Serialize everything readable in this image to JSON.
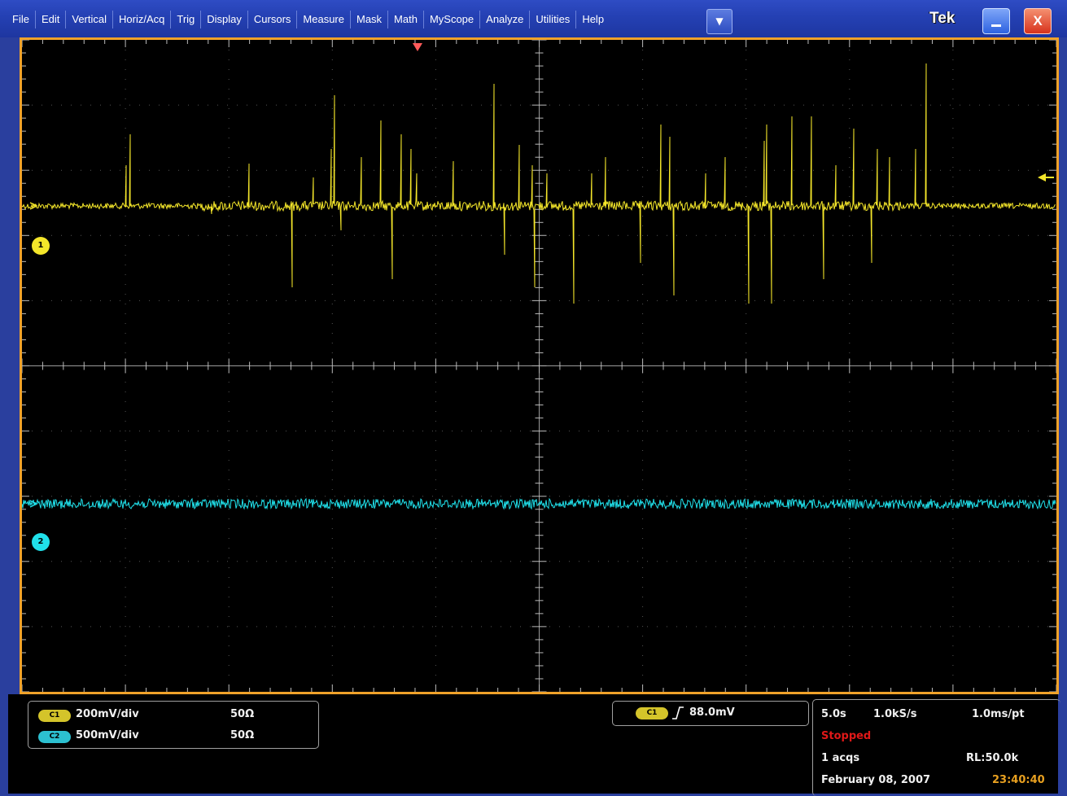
{
  "menu": {
    "items": [
      "File",
      "Edit",
      "Vertical",
      "Horiz/Acq",
      "Trig",
      "Display",
      "Cursors",
      "Measure",
      "Mask",
      "Math",
      "MyScope",
      "Analyze",
      "Utilities",
      "Help"
    ],
    "dropdown_glyph": "▼"
  },
  "window": {
    "brand": "Tek",
    "close_glyph": "X",
    "accent_color": "#f0a22a"
  },
  "display": {
    "ch1": {
      "marker": "1",
      "color": "#f4e62a"
    },
    "ch2": {
      "marker": "2",
      "color": "#20e0ea"
    },
    "trigger_position_color": "#ff5a5a",
    "trigger_level_color": "#f4e62a"
  },
  "channels": [
    {
      "badge": "C1",
      "scale": "200mV/div",
      "impedance": "50Ω"
    },
    {
      "badge": "C2",
      "scale": "500mV/div",
      "impedance": "50Ω"
    }
  ],
  "trigger": {
    "source": "C1",
    "slope_icon": "rising-edge-icon",
    "level": "88.0mV"
  },
  "horizontal": {
    "timebase": "5.0s",
    "sample_rate": "1.0kS/s",
    "resolution": "1.0ms/pt",
    "status": "Stopped",
    "status_color": "#e01818",
    "acqs": "1 acqs",
    "record_length": "RL:50.0k",
    "date": "February 08, 2007",
    "time": "23:40:40",
    "time_color": "#e8a020"
  }
}
